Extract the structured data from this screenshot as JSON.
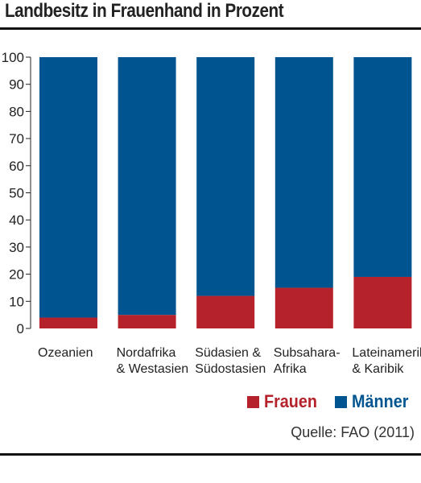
{
  "title": "Landbesitz in Frauenhand in Prozent",
  "source": "Quelle: FAO (2011)",
  "colors": {
    "frauen": "#b5222b",
    "maenner": "#005591"
  },
  "legend": [
    {
      "name": "Frauen",
      "color": "#b5222b"
    },
    {
      "name": "Männer",
      "color": "#005591"
    }
  ],
  "chart_data": {
    "type": "bar",
    "stacked": true,
    "categories": [
      [
        "Ozeanien"
      ],
      [
        "Nordafrika",
        "& Westasien"
      ],
      [
        "Südasien &",
        "Südostasien"
      ],
      [
        "Subsahara-",
        "Afrika"
      ],
      [
        "Lateinamerika",
        "& Karibik"
      ]
    ],
    "series": [
      {
        "name": "Frauen",
        "values": [
          4,
          5,
          12,
          15,
          19
        ]
      },
      {
        "name": "Männer",
        "values": [
          96,
          95,
          88,
          85,
          81
        ]
      }
    ],
    "ylim": [
      0,
      100
    ],
    "yticks": [
      0,
      10,
      20,
      30,
      40,
      50,
      60,
      70,
      80,
      90,
      100
    ],
    "grid": false,
    "legend_position": "bottom-right"
  }
}
